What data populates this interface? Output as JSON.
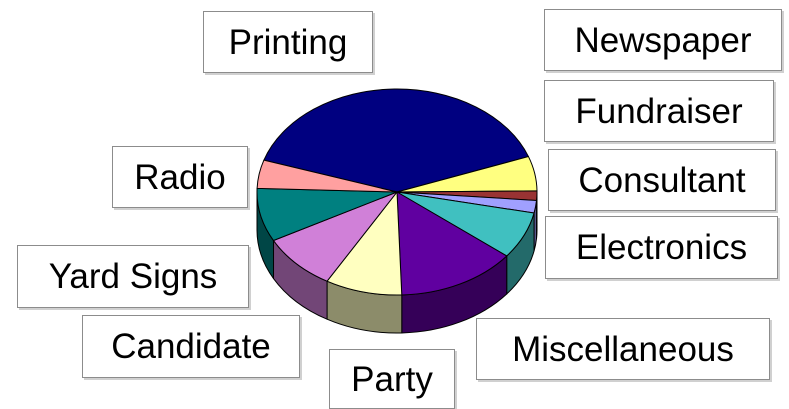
{
  "chart_data": {
    "type": "pie",
    "style": "3d",
    "title": "",
    "legend": "none",
    "slices": [
      {
        "label": "Printing",
        "value": 40.0,
        "color": "#000080"
      },
      {
        "label": "Newspaper",
        "value": 5.5,
        "color": "#ffff80"
      },
      {
        "label": "Fundraiser",
        "value": 1.5,
        "color": "#993333"
      },
      {
        "label": "Consultant",
        "value": 2.0,
        "color": "#a0a0ff"
      },
      {
        "label": "Electronics",
        "value": 7.5,
        "color": "#40c0c0"
      },
      {
        "label": "Miscellaneous",
        "value": 14.0,
        "color": "#6000a0"
      },
      {
        "label": "Party",
        "value": 9.0,
        "color": "#ffffc0"
      },
      {
        "label": "Candidate",
        "value": 9.0,
        "color": "#d080d8"
      },
      {
        "label": "Yard Signs",
        "value": 8.5,
        "color": "#008080"
      },
      {
        "label": "Radio",
        "value": 4.5,
        "color": "#ffa0a0"
      }
    ]
  }
}
